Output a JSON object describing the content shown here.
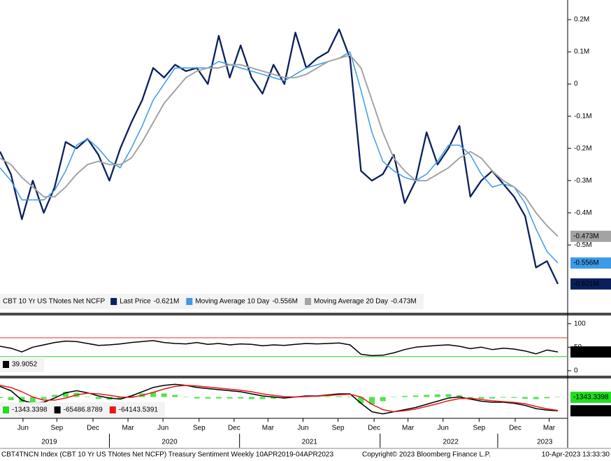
{
  "chart_data": [
    {
      "type": "line",
      "legend_title": "CBT 10 Yr US TNotes Net NCFP",
      "ylim": [
        -706000,
        261000
      ],
      "yticks": [
        {
          "value": 200000,
          "label": "0.2M"
        },
        {
          "value": 100000,
          "label": "0.1M"
        },
        0,
        {
          "value": -100000,
          "label": "-0.1M"
        },
        {
          "value": -200000,
          "label": "-0.2M"
        },
        {
          "value": -300000,
          "label": "-0.3M"
        },
        {
          "value": -400000,
          "label": "-0.4M"
        },
        {
          "value": -500000,
          "label": "-0.5M"
        }
      ],
      "series": [
        {
          "name": "Last Price",
          "color": "#0b1f5c",
          "label_text_color": "#ffffff",
          "values": [
            -210000,
            -280000,
            -420000,
            -300000,
            -400000,
            -320000,
            -180000,
            -200000,
            -170000,
            -220000,
            -300000,
            -200000,
            -120000,
            -50000,
            50000,
            20000,
            60000,
            40000,
            50000,
            0,
            150000,
            20000,
            120000,
            20000,
            -30000,
            60000,
            0,
            160000,
            50000,
            80000,
            100000,
            170000,
            80000,
            -270000,
            -300000,
            -280000,
            -220000,
            -370000,
            -300000,
            -150000,
            -250000,
            -200000,
            -130000,
            -350000,
            -300000,
            -270000,
            -310000,
            -350000,
            -410000,
            -570000,
            -550000,
            -621000
          ],
          "value_labels": [
            null,
            null,
            null,
            null,
            null,
            null,
            null,
            null,
            null,
            null,
            null,
            null,
            null,
            null,
            null,
            null,
            null,
            null,
            null,
            null,
            null,
            null,
            null,
            null,
            null,
            null,
            null,
            null,
            null,
            null,
            null,
            null,
            null,
            null,
            null,
            null,
            null,
            null,
            null,
            null,
            null,
            null,
            null,
            null,
            null,
            null,
            null,
            null,
            null,
            null,
            null,
            "-0.621M"
          ]
        },
        {
          "name": "Moving Average 10 Day",
          "color": "#3d9ae8",
          "label_text_color": "#000000",
          "values": [
            -260000,
            -300000,
            -360000,
            -360000,
            -360000,
            -330000,
            -270000,
            -190000,
            -170000,
            -200000,
            -240000,
            -260000,
            -200000,
            -130000,
            -50000,
            0,
            50000,
            50000,
            50000,
            50000,
            70000,
            60000,
            50000,
            40000,
            30000,
            20000,
            10000,
            30000,
            50000,
            60000,
            70000,
            80000,
            100000,
            -20000,
            -150000,
            -240000,
            -270000,
            -290000,
            -300000,
            -280000,
            -240000,
            -190000,
            -190000,
            -220000,
            -280000,
            -320000,
            -310000,
            -320000,
            -370000,
            -450000,
            -520000,
            -556000
          ],
          "value_labels": [
            null,
            null,
            null,
            null,
            null,
            null,
            null,
            null,
            null,
            null,
            null,
            null,
            null,
            null,
            null,
            null,
            null,
            null,
            null,
            null,
            null,
            null,
            null,
            null,
            null,
            null,
            null,
            null,
            null,
            null,
            null,
            null,
            null,
            null,
            null,
            null,
            null,
            null,
            null,
            null,
            null,
            null,
            null,
            null,
            null,
            null,
            null,
            null,
            null,
            null,
            null,
            "-0.556M"
          ]
        },
        {
          "name": "Moving Average 20 Day",
          "color": "#a3a3a3",
          "label_text_color": "#000000",
          "values": [
            -230000,
            -250000,
            -290000,
            -320000,
            -350000,
            -350000,
            -320000,
            -280000,
            -250000,
            -240000,
            -250000,
            -250000,
            -230000,
            -180000,
            -120000,
            -60000,
            -20000,
            20000,
            40000,
            50000,
            50000,
            60000,
            60000,
            50000,
            40000,
            30000,
            20000,
            20000,
            30000,
            50000,
            70000,
            80000,
            90000,
            50000,
            -50000,
            -150000,
            -230000,
            -270000,
            -300000,
            -300000,
            -280000,
            -260000,
            -230000,
            -210000,
            -230000,
            -270000,
            -300000,
            -320000,
            -350000,
            -400000,
            -440000,
            -473000
          ],
          "value_labels": [
            null,
            null,
            null,
            null,
            null,
            null,
            null,
            null,
            null,
            null,
            null,
            null,
            null,
            null,
            null,
            null,
            null,
            null,
            null,
            null,
            null,
            null,
            null,
            null,
            null,
            null,
            null,
            null,
            null,
            null,
            null,
            null,
            null,
            null,
            null,
            null,
            null,
            null,
            null,
            null,
            null,
            null,
            null,
            null,
            null,
            null,
            null,
            null,
            null,
            null,
            null,
            "-0.473M"
          ]
        }
      ]
    },
    {
      "type": "line",
      "ylim": [
        -12,
        116
      ],
      "yticks": [
        0,
        50,
        100
      ],
      "ref_lines": [
        {
          "value": 70,
          "color": "#e03030"
        },
        {
          "value": 30,
          "color": "#2ec52e"
        }
      ],
      "series": [
        {
          "color": "#000000",
          "label_text_color": "#ffffff",
          "values": [
            52,
            48,
            40,
            50,
            55,
            60,
            63,
            62,
            58,
            54,
            55,
            57,
            60,
            62,
            64,
            60,
            58,
            57,
            60,
            56,
            58,
            55,
            57,
            56,
            53,
            55,
            54,
            56,
            58,
            57,
            58,
            59,
            55,
            35,
            32,
            33,
            38,
            45,
            50,
            52,
            54,
            55,
            52,
            47,
            50,
            45,
            48,
            46,
            42,
            36,
            44,
            39.9052
          ]
        }
      ]
    },
    {
      "type": "line",
      "ylim": [
        -98000,
        88000
      ],
      "xlim": [
        0,
        51
      ],
      "xticks": [
        {
          "value": 2.1,
          "label": "Jun"
        },
        {
          "value": 5.2,
          "label": "Sep"
        },
        {
          "value": 8.5,
          "label": "Dec"
        },
        {
          "value": 11.7,
          "label": "Mar"
        },
        {
          "value": 14.9,
          "label": "Jun"
        },
        {
          "value": 18.2,
          "label": "Sep"
        },
        {
          "value": 21.4,
          "label": "Dec"
        },
        {
          "value": 24.5,
          "label": "Mar"
        },
        {
          "value": 27.7,
          "label": "Jun"
        },
        {
          "value": 30.9,
          "label": "Sep"
        },
        {
          "value": 34.2,
          "label": "Dec"
        },
        {
          "value": 37.3,
          "label": "Mar"
        },
        {
          "value": 40.5,
          "label": "Jun"
        },
        {
          "value": 43.8,
          "label": "Sep"
        },
        {
          "value": 47.1,
          "label": "Dec"
        },
        {
          "value": 50.2,
          "label": "Mar"
        }
      ],
      "year_ticks": [
        {
          "value": 4.5,
          "label": "2019"
        },
        {
          "value": 15.5,
          "label": "2020"
        },
        {
          "value": 28.3,
          "label": "2021"
        },
        {
          "value": 41.2,
          "label": "2022"
        },
        {
          "value": 49.8,
          "label": "2023"
        }
      ],
      "series": [
        {
          "type": "bar",
          "color": "#22dd22",
          "label_text_color": "#000000",
          "values": [
            -5000,
            -15000,
            -40000,
            -30000,
            -10000,
            10000,
            25000,
            20000,
            2000,
            -10000,
            -13000,
            -10000,
            7000,
            17000,
            23000,
            17000,
            10000,
            0,
            -7000,
            -7000,
            -7000,
            -7000,
            -7000,
            -10000,
            -10000,
            -8000,
            -7000,
            0,
            3000,
            1000,
            3000,
            4000,
            2000,
            -30000,
            -35000,
            -20000,
            0,
            5000,
            7000,
            10000,
            12000,
            13000,
            8000,
            -4000,
            -8000,
            -7000,
            -3000,
            -4000,
            -8000,
            -10000,
            -6000,
            -1343.3398
          ]
        },
        {
          "type": "line",
          "color": "#000000",
          "label_text_color": "#ffffff",
          "values": [
            50000,
            30000,
            -15000,
            -30000,
            -25000,
            -5000,
            20000,
            30000,
            20000,
            5000,
            -5000,
            -10000,
            5000,
            25000,
            45000,
            55000,
            60000,
            55000,
            45000,
            40000,
            35000,
            30000,
            25000,
            15000,
            5000,
            0,
            -5000,
            0,
            5000,
            5000,
            10000,
            15000,
            15000,
            -30000,
            -70000,
            -80000,
            -70000,
            -60000,
            -50000,
            -35000,
            -20000,
            -5000,
            0,
            -10000,
            -20000,
            -25000,
            -25000,
            -30000,
            -40000,
            -55000,
            -62000,
            -65486.8789
          ]
        },
        {
          "type": "line",
          "color": "#e81818",
          "label_box": false,
          "values": [
            55000,
            45000,
            25000,
            0,
            -15000,
            -15000,
            -5000,
            10000,
            18000,
            15000,
            8000,
            0,
            -2000,
            8000,
            22000,
            38000,
            50000,
            55000,
            52000,
            47000,
            42000,
            37000,
            32000,
            25000,
            15000,
            8000,
            2000,
            0,
            2000,
            4000,
            7000,
            11000,
            13000,
            0,
            -35000,
            -60000,
            -70000,
            -65000,
            -57000,
            -45000,
            -32000,
            -18000,
            -8000,
            -6000,
            -12000,
            -18000,
            -22000,
            -26000,
            -32000,
            -45000,
            -56000,
            -64143.5391
          ]
        }
      ]
    }
  ],
  "footer": {
    "left": "CBT4TNCN Index (CBT 10 Yr US TNotes Net NCFP) Treasury Sentiment  Weekly 10APR2019-04APR2023",
    "center": "Copyright© 2023 Bloomberg Finance L.P.",
    "right": "10-Apr-2023 13:33:30"
  }
}
